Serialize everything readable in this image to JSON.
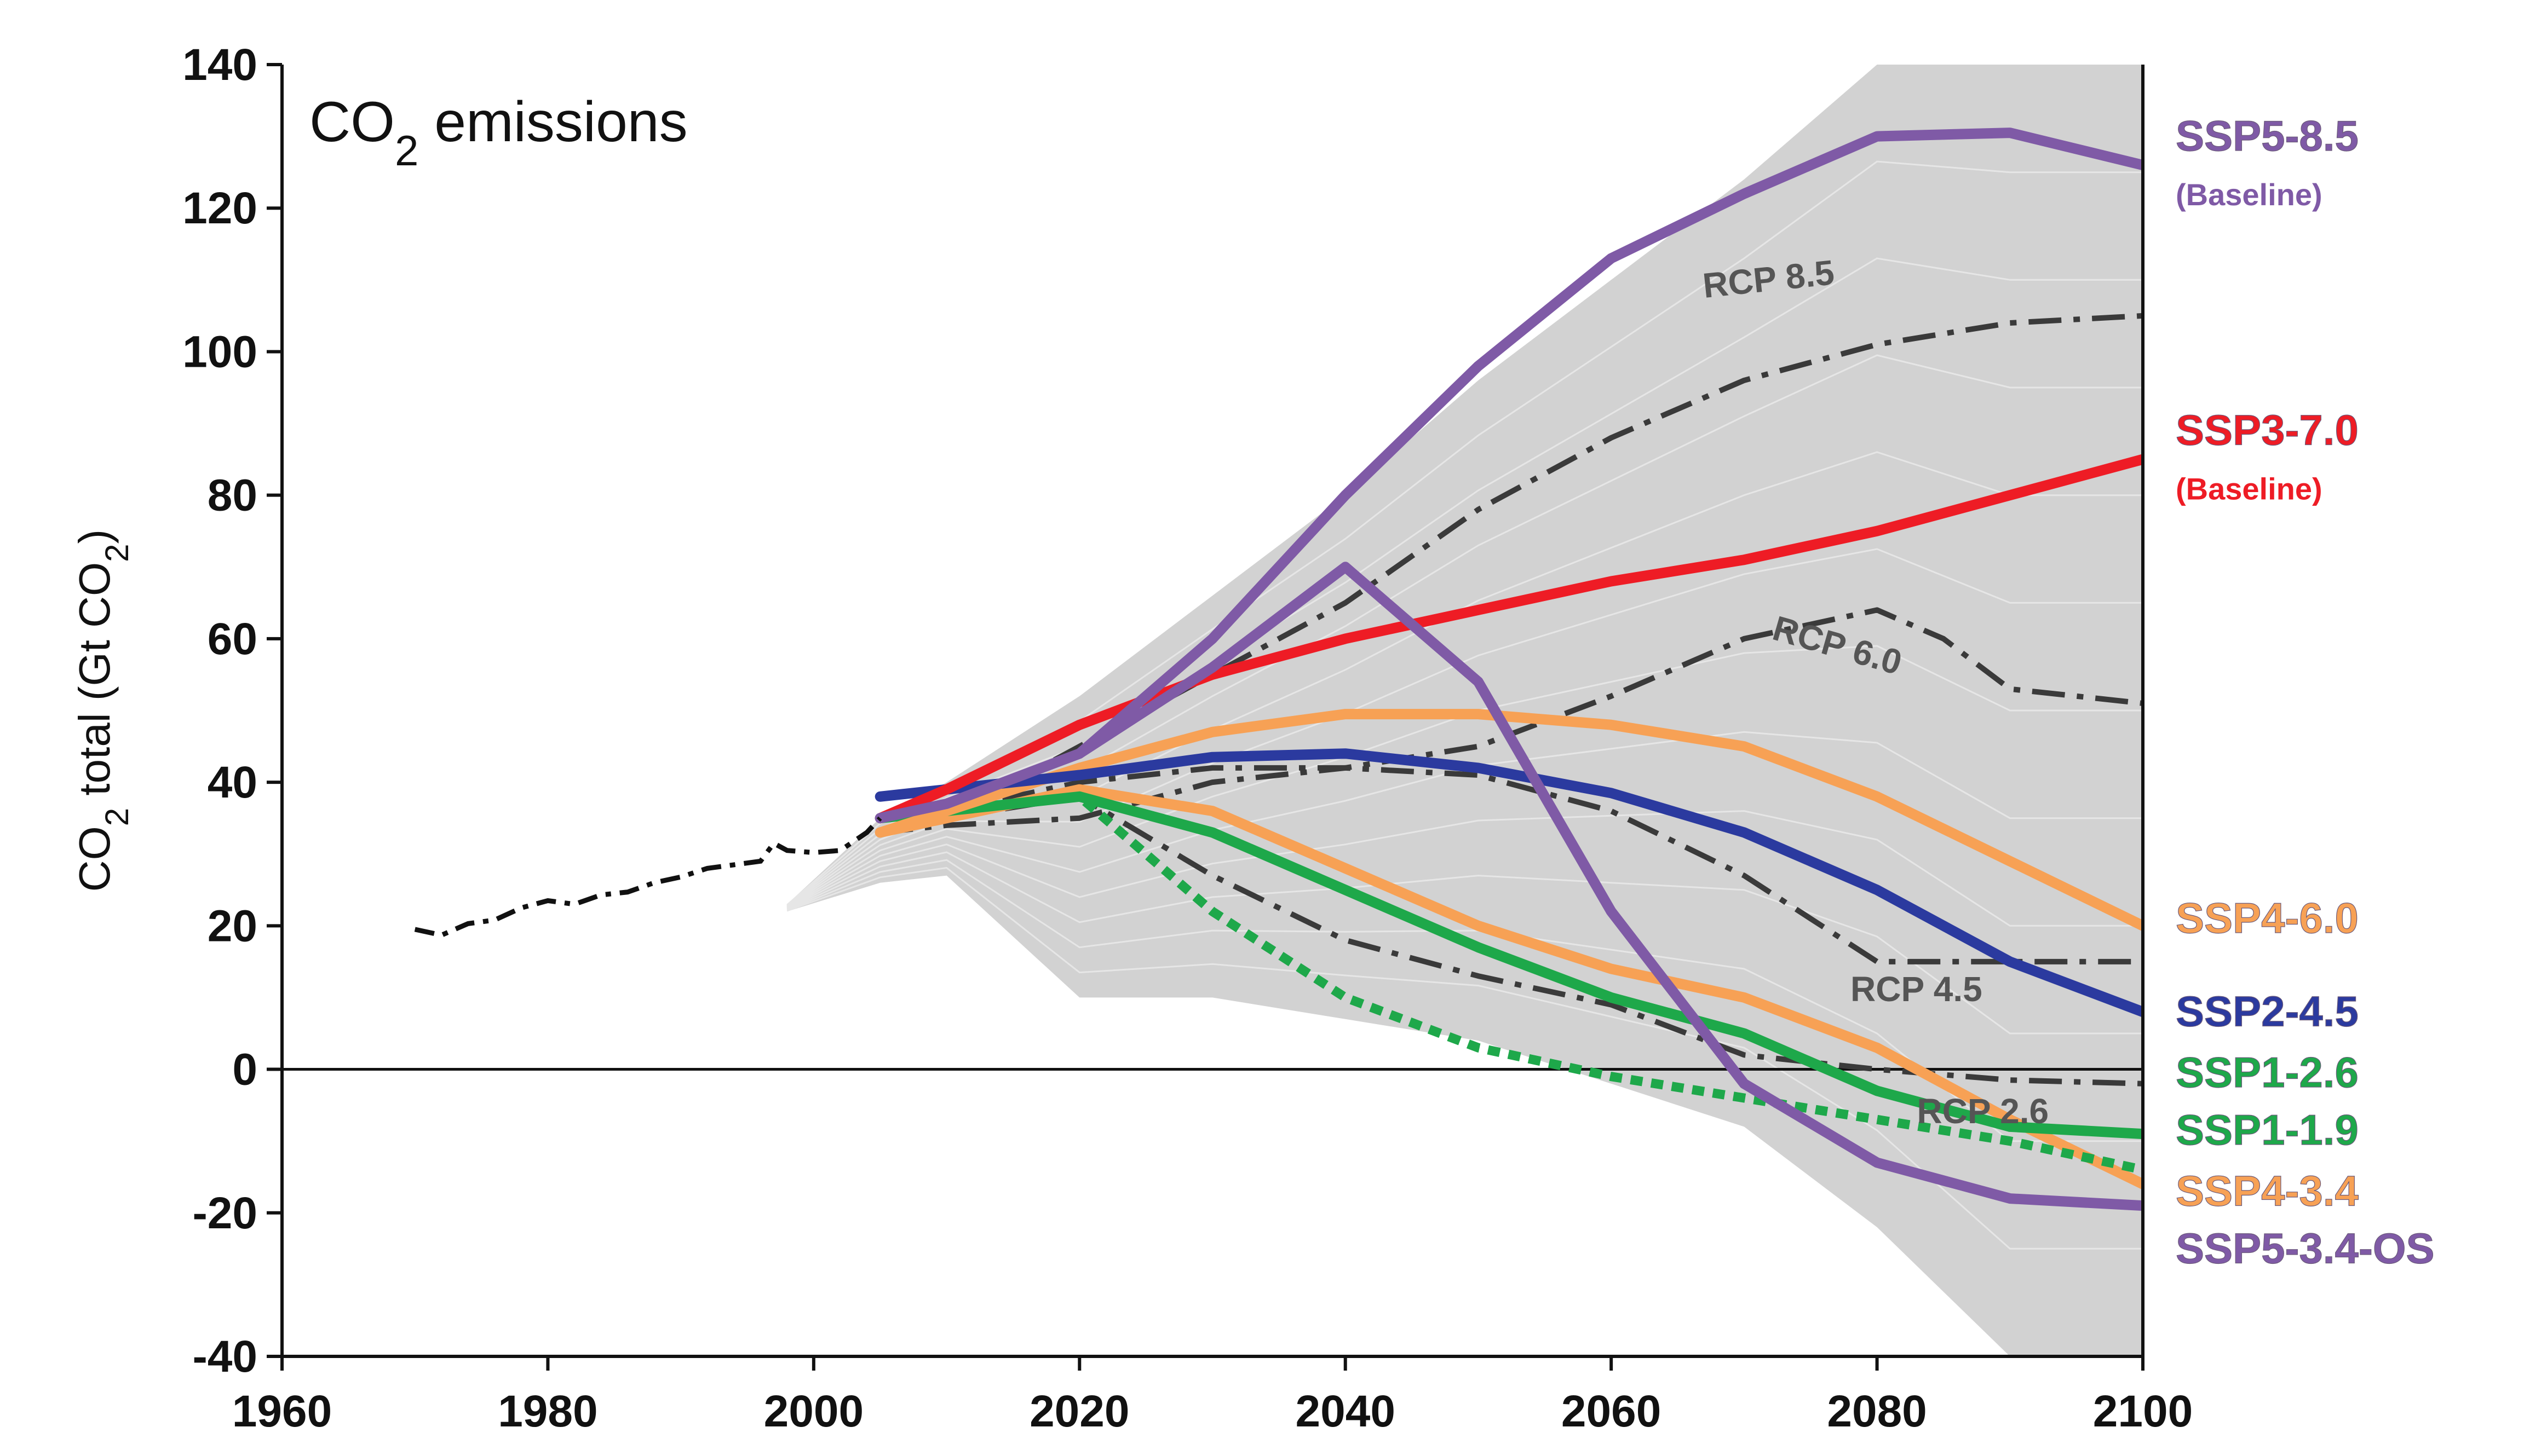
{
  "chart_data": {
    "type": "line",
    "title": "CO2 emissions",
    "ylabel": "CO2 total (Gt CO2)",
    "xlim": [
      1960,
      2100
    ],
    "ylim": [
      -40,
      140
    ],
    "x_ticks": [
      1960,
      1980,
      2000,
      2020,
      2040,
      2060,
      2080,
      2100
    ],
    "y_ticks": [
      -40,
      -20,
      0,
      20,
      40,
      60,
      80,
      100,
      120,
      140
    ],
    "grid": false,
    "scenario_range": {
      "x": [
        1998,
        2005,
        2010,
        2020,
        2030,
        2040,
        2050,
        2060,
        2070,
        2080,
        2090,
        2100
      ],
      "upper": [
        23,
        35,
        40,
        52,
        66,
        80,
        96,
        110,
        124,
        140,
        140,
        140
      ],
      "lower": [
        22,
        26,
        27,
        10,
        10,
        7,
        4,
        -2,
        -8,
        -22,
        -40,
        -40
      ]
    },
    "historical": {
      "name": "",
      "x": [
        1970,
        1972,
        1974,
        1976,
        1978,
        1980,
        1982,
        1984,
        1986,
        1988,
        1990,
        1992,
        1994,
        1996,
        1997,
        1998,
        2000,
        2002,
        2004,
        2005
      ],
      "y": [
        19.5,
        18.7,
        20.3,
        20.8,
        22.5,
        23.5,
        23,
        24.3,
        24.7,
        26,
        26.8,
        28,
        28.5,
        29,
        31.5,
        30.5,
        30.2,
        30.5,
        33,
        35
      ]
    },
    "series": [
      {
        "name": "SSP5-8.5",
        "sublabel": "(Baseline)",
        "color": "#7f5aa6",
        "style": "solid",
        "x": [
          2005,
          2010,
          2020,
          2030,
          2040,
          2050,
          2060,
          2070,
          2080,
          2090,
          2100
        ],
        "y": [
          35,
          37,
          44,
          60,
          80,
          98,
          113,
          122,
          130,
          130.5,
          126
        ]
      },
      {
        "name": "SSP3-7.0",
        "sublabel": "(Baseline)",
        "color": "#ee1c25",
        "style": "solid",
        "x": [
          2005,
          2010,
          2020,
          2030,
          2040,
          2050,
          2060,
          2070,
          2080,
          2090,
          2100
        ],
        "y": [
          35,
          39,
          48,
          55,
          60,
          64,
          68,
          71,
          75,
          80,
          85
        ]
      },
      {
        "name": "SSP4-6.0",
        "color": "#f7a155",
        "style": "solid",
        "x": [
          2005,
          2010,
          2020,
          2030,
          2040,
          2050,
          2060,
          2070,
          2080,
          2090,
          2100
        ],
        "y": [
          33,
          36,
          42,
          47,
          49.5,
          49.5,
          48,
          45,
          38,
          29,
          20
        ]
      },
      {
        "name": "SSP2-4.5",
        "color": "#2b3a9f",
        "style": "solid",
        "x": [
          2005,
          2010,
          2020,
          2030,
          2040,
          2050,
          2060,
          2070,
          2080,
          2090,
          2100
        ],
        "y": [
          38,
          39,
          41,
          43.5,
          44,
          42,
          38.5,
          33,
          25,
          15,
          8
        ]
      },
      {
        "name": "SSP1-2.6",
        "color": "#1ea84a",
        "style": "solid",
        "x": [
          2005,
          2010,
          2020,
          2030,
          2040,
          2050,
          2060,
          2070,
          2080,
          2090,
          2100
        ],
        "y": [
          35,
          36,
          38,
          33,
          25,
          17,
          10,
          5,
          -3,
          -8,
          -9
        ]
      },
      {
        "name": "SSP1-1.9",
        "color": "#1ea84a",
        "style": "dotted",
        "x": [
          2005,
          2010,
          2020,
          2025,
          2030,
          2040,
          2050,
          2060,
          2070,
          2080,
          2090,
          2100
        ],
        "y": [
          35,
          36,
          38,
          30,
          22,
          10,
          3,
          -1,
          -4,
          -7,
          -10,
          -14
        ]
      },
      {
        "name": "SSP4-3.4",
        "color": "#f7a155",
        "style": "solid",
        "x": [
          2005,
          2010,
          2020,
          2030,
          2040,
          2050,
          2060,
          2070,
          2080,
          2090,
          2100
        ],
        "y": [
          33,
          35,
          39,
          36,
          28,
          20,
          14,
          10,
          3,
          -7,
          -16
        ]
      },
      {
        "name": "SSP5-3.4-OS",
        "color": "#7f5aa6",
        "style": "solid",
        "x": [
          2005,
          2010,
          2020,
          2030,
          2040,
          2050,
          2060,
          2070,
          2080,
          2090,
          2100
        ],
        "y": [
          35,
          37,
          44,
          56,
          70,
          54,
          22,
          -2,
          -13,
          -18,
          -19
        ]
      }
    ],
    "rcp": [
      {
        "name": "RCP 8.5",
        "color": "#3a3a3a",
        "style": "dashdot",
        "x": [
          2005,
          2010,
          2020,
          2030,
          2040,
          2050,
          2060,
          2070,
          2080,
          2090,
          2100
        ],
        "y": [
          33,
          35,
          45,
          55,
          65,
          78,
          88,
          96,
          101,
          104,
          105
        ]
      },
      {
        "name": "RCP 6.0",
        "color": "#3a3a3a",
        "style": "dashdot",
        "x": [
          2005,
          2010,
          2020,
          2030,
          2040,
          2050,
          2060,
          2070,
          2080,
          2085,
          2090,
          2100
        ],
        "y": [
          33,
          34,
          35,
          40,
          42,
          45,
          52,
          60,
          64,
          60,
          53,
          51
        ]
      },
      {
        "name": "RCP 4.5",
        "color": "#3a3a3a",
        "style": "dashdot",
        "x": [
          2005,
          2010,
          2020,
          2030,
          2040,
          2050,
          2060,
          2070,
          2080,
          2090,
          2100
        ],
        "y": [
          33,
          36,
          40,
          42,
          42,
          41,
          36,
          27,
          15,
          15,
          15
        ]
      },
      {
        "name": "RCP 2.6",
        "color": "#3a3a3a",
        "style": "dashdot",
        "x": [
          2005,
          2010,
          2020,
          2030,
          2040,
          2050,
          2060,
          2070,
          2080,
          2090,
          2100
        ],
        "y": [
          33,
          35,
          38,
          27,
          18,
          13,
          9,
          2,
          0,
          -1.5,
          -2
        ]
      }
    ]
  }
}
